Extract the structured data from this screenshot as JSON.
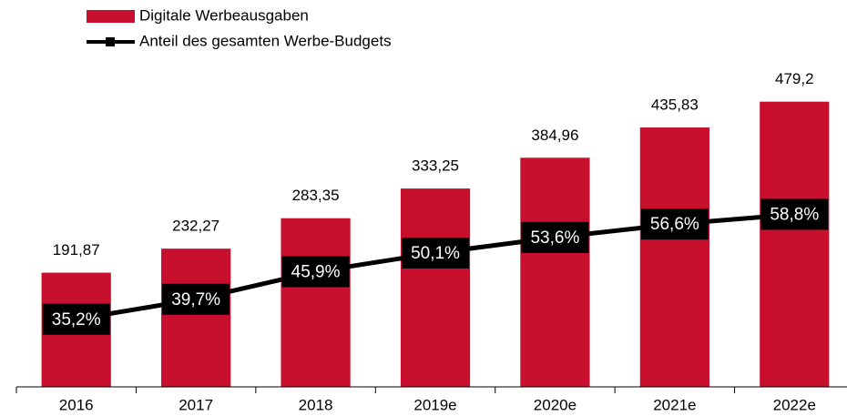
{
  "chart_data": {
    "type": "bar",
    "categories": [
      "2016",
      "2017",
      "2018",
      "2019e",
      "2020e",
      "2021e",
      "2022e"
    ],
    "series": [
      {
        "name": "Digitale Werbeausgaben",
        "type": "bar",
        "color": "#c8102e",
        "values": [
          191.87,
          232.27,
          283.35,
          333.25,
          384.96,
          435.83,
          479.2
        ],
        "value_labels": [
          "191,87",
          "232,27",
          "283,35",
          "333,25",
          "384,96",
          "435,83",
          "479,2"
        ]
      },
      {
        "name": "Anteil des gesamten Werbe-Budgets",
        "type": "line",
        "axis": "y2",
        "color": "#000000",
        "values": [
          35.2,
          39.7,
          45.9,
          50.1,
          53.6,
          56.6,
          58.8
        ],
        "value_labels": [
          "35,2%",
          "39,7%",
          "45,9%",
          "50,1%",
          "53,6%",
          "56,6%",
          "58,8%"
        ]
      }
    ],
    "ylim": [
      0,
      650
    ],
    "y2lim": [
      20,
      107
    ]
  }
}
